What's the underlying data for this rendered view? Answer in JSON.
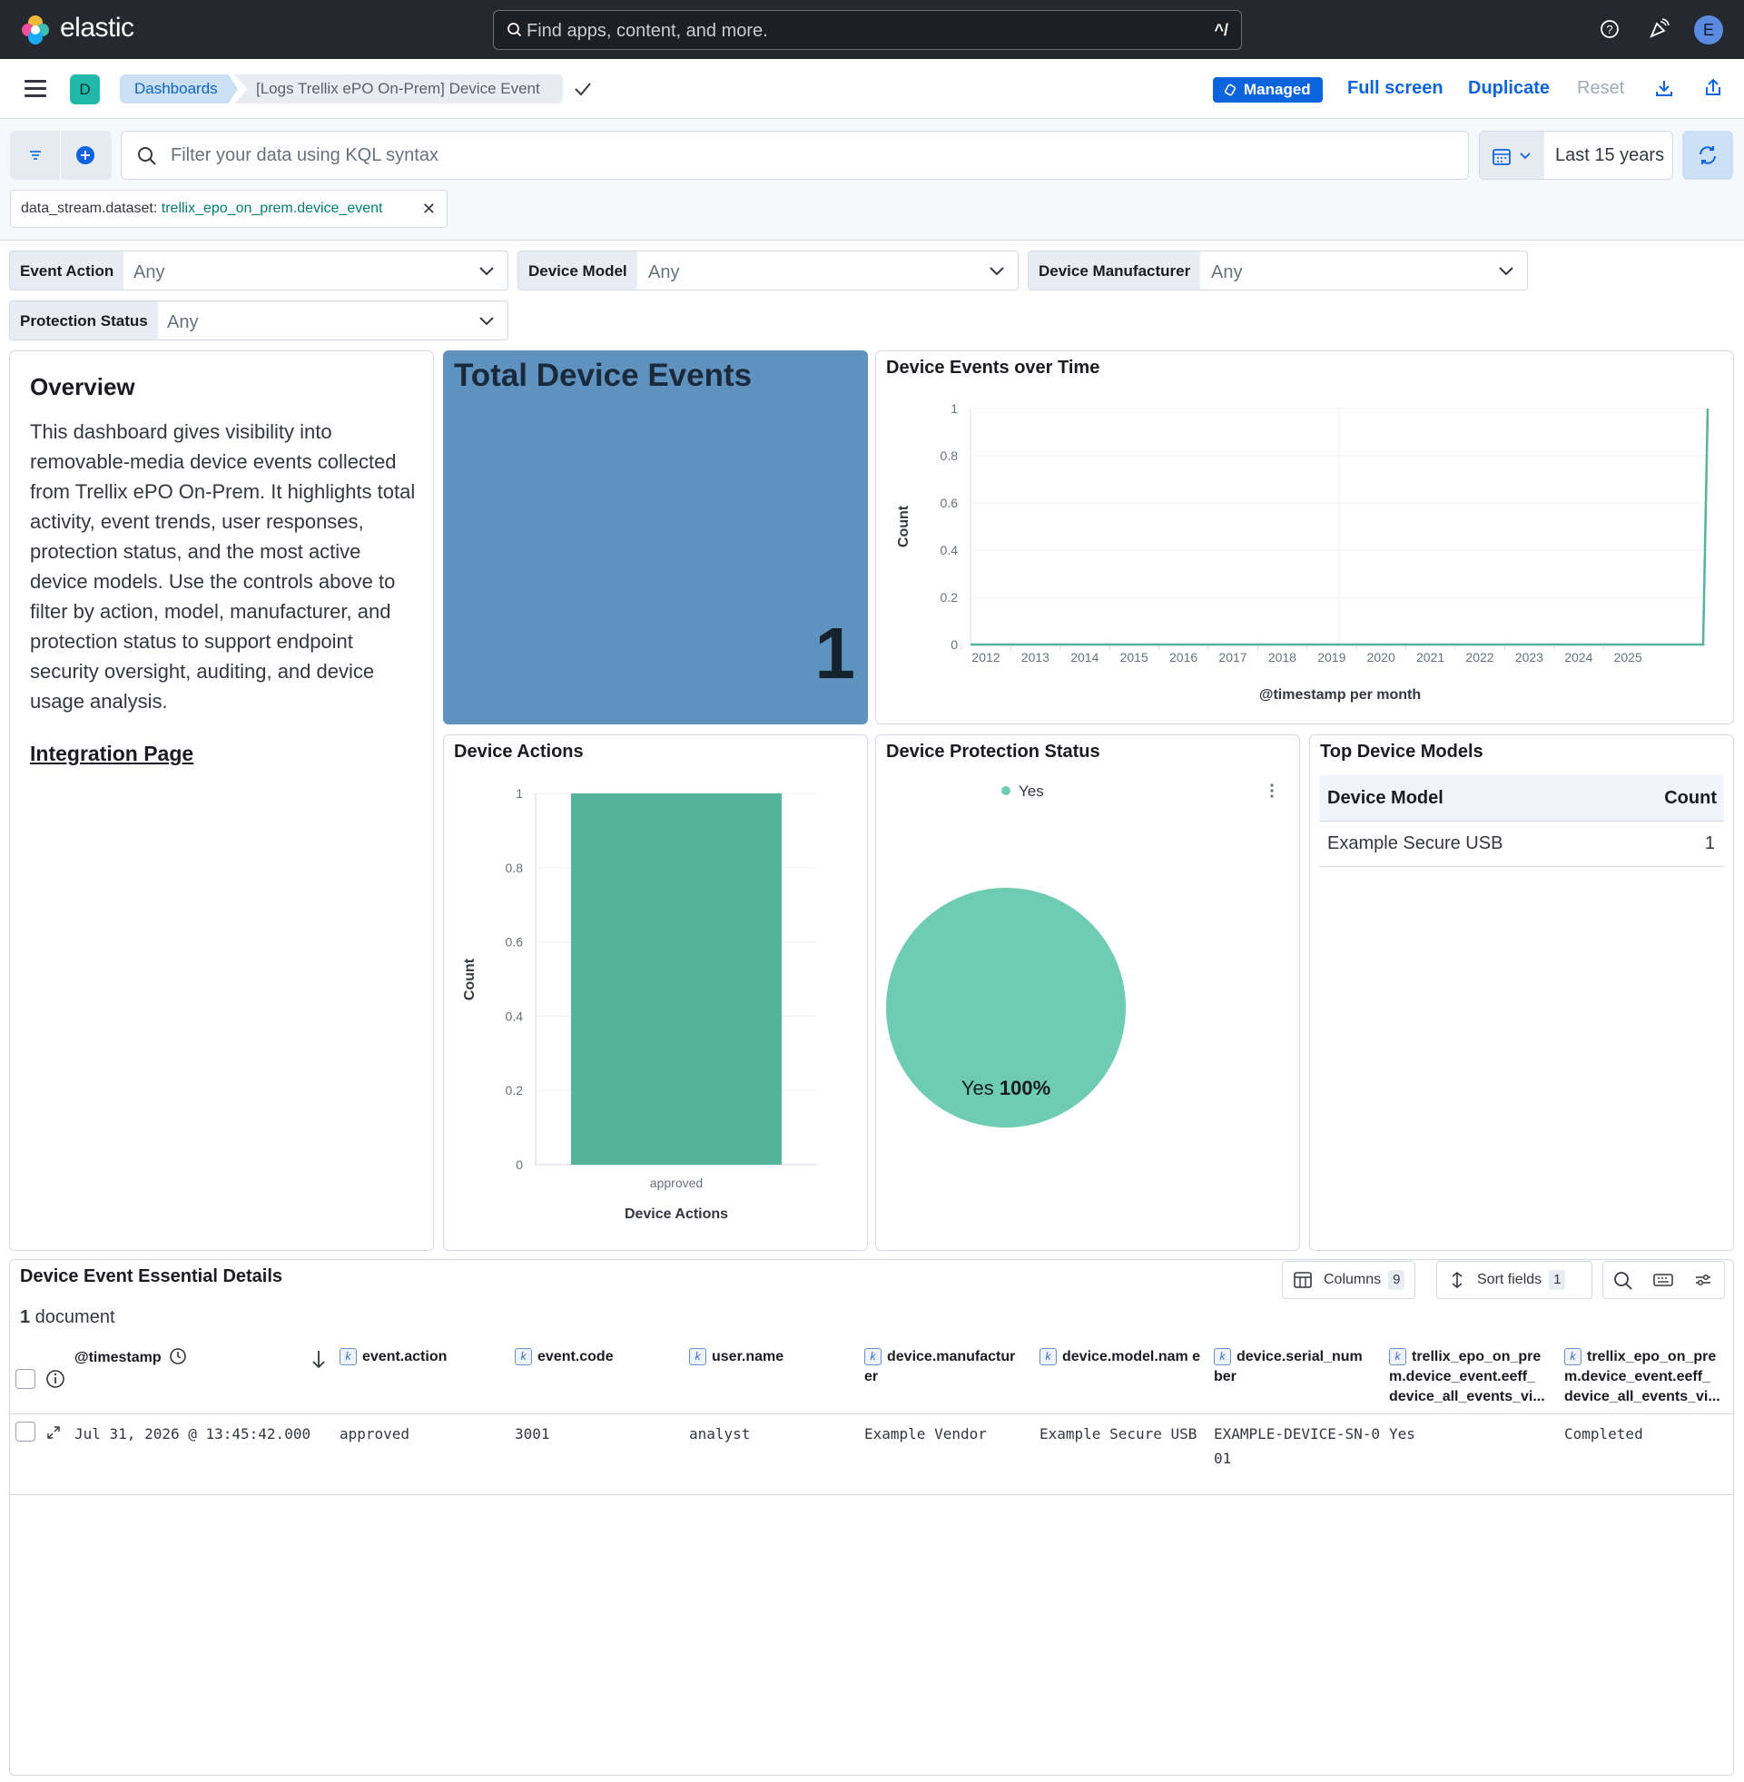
{
  "header": {
    "brand": "elastic",
    "search_placeholder": "Find apps, content, and more.",
    "search_shortcut": "^/",
    "avatar_initial": "E"
  },
  "nav": {
    "space_initial": "D",
    "breadcrumb_root": "Dashboards",
    "breadcrumb_current": "[Logs Trellix ePO On-Prem] Device Event",
    "managed_label": "Managed",
    "full_screen": "Full screen",
    "duplicate": "Duplicate",
    "reset": "Reset"
  },
  "query": {
    "kql_placeholder": "Filter your data using KQL syntax",
    "time_range": "Last 15 years",
    "filter_pill_field": "data_stream.dataset: ",
    "filter_pill_value": "trellix_epo_on_prem.device_event"
  },
  "controls": [
    {
      "label": "Event Action",
      "value": "Any"
    },
    {
      "label": "Device Model",
      "value": "Any"
    },
    {
      "label": "Device Manufacturer",
      "value": "Any"
    },
    {
      "label": "Protection Status",
      "value": "Any"
    }
  ],
  "overview": {
    "title": "Overview",
    "body": "This dashboard gives visibility into removable-media device events collected from Trellix ePO On-Prem. It highlights total activity, event trends, user responses, protection status, and the most active device models. Use the controls above to filter by action, model, manufacturer, and protection status to support endpoint security oversight, auditing, and device usage analysis.",
    "link": "Integration Page"
  },
  "metric": {
    "title": "Total Device Events",
    "value": "1",
    "color": "#6092c0"
  },
  "time_chart": {
    "title": "Device Events over Time",
    "y_ticks": [
      "1",
      "0.8",
      "0.6",
      "0.4",
      "0.2",
      "0"
    ],
    "x_ticks": [
      "2012",
      "2013",
      "2014",
      "2015",
      "2016",
      "2017",
      "2018",
      "2019",
      "2020",
      "2021",
      "2022",
      "2023",
      "2024",
      "2025"
    ],
    "ylabel": "Count",
    "xlabel": "@timestamp per month"
  },
  "actions_chart": {
    "title": "Device Actions",
    "y_ticks": [
      "1",
      "0.8",
      "0.6",
      "0.4",
      "0.2",
      "0"
    ],
    "category": "approved",
    "ylabel": "Count",
    "xlabel": "Device Actions"
  },
  "protection_chart": {
    "title": "Device Protection Status",
    "legend": "Yes",
    "slice_label": "Yes",
    "slice_pct": "100%"
  },
  "top_models": {
    "title": "Top Device Models",
    "col_model": "Device Model",
    "col_count": "Count",
    "rows": [
      {
        "model": "Example Secure USB",
        "count": "1"
      }
    ]
  },
  "details": {
    "title": "Device Event Essential Details",
    "doc_count": "1",
    "doc_label": " document",
    "columns_label": "Columns",
    "columns_count": "9",
    "sort_label": "Sort fields",
    "sort_count": "1",
    "headers": [
      "@timestamp",
      "event.action",
      "event.code",
      "user.name",
      "device.manufactur er",
      "device.model.nam e",
      "device.serial_num ber",
      "trellix_epo_on_pre m.device_event.eeff_ device_all_events_vi...",
      "trellix_epo_on_pre m.device_event.eeff_ device_all_events_vi..."
    ],
    "row": [
      "Jul 31, 2026 @ 13:45:42.000",
      "approved",
      "3001",
      "analyst",
      "Example Vendor",
      "Example Secure USB",
      "EXAMPLE-DEVICE-SN-001",
      "Yes",
      "Completed"
    ]
  },
  "chart_data": [
    {
      "type": "line",
      "title": "Device Events over Time",
      "xlabel": "@timestamp per month",
      "ylabel": "Count",
      "x": [
        "2011-09",
        "2026-06",
        "2026-07"
      ],
      "series": [
        {
          "values": [
            0,
            0,
            1
          ]
        }
      ],
      "ylim": [
        0,
        1
      ],
      "color": "#54b399"
    },
    {
      "type": "bar",
      "title": "Device Actions",
      "categories": [
        "approved"
      ],
      "values": [
        1
      ],
      "xlabel": "Device Actions",
      "ylabel": "Count",
      "ylim": [
        0,
        1
      ],
      "color": "#54b399"
    },
    {
      "type": "pie",
      "title": "Device Protection Status",
      "categories": [
        "Yes"
      ],
      "values": [
        100
      ],
      "color": "#6dccb1"
    }
  ]
}
